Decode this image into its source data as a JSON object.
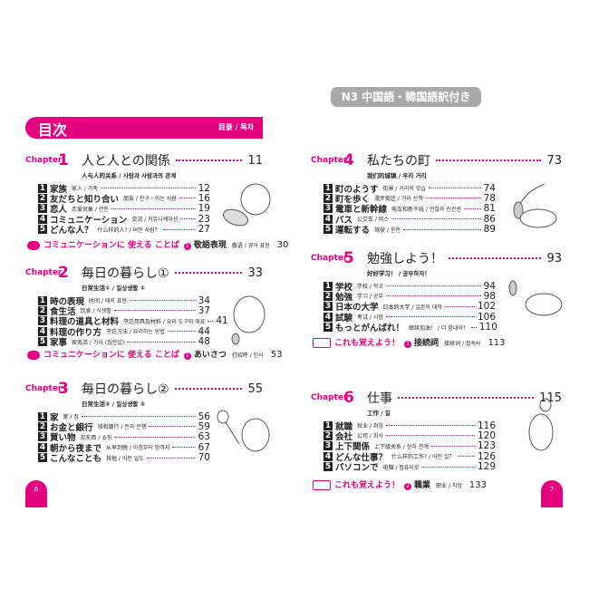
{
  "banner": "N3 中国語・韓国語訳付き",
  "header": {
    "title": "目次",
    "subtitle": "目录 / 목차"
  },
  "colors": {
    "accent": "#e4007f",
    "banner": "#a9a9a9"
  },
  "conv_label": "コミュニケーションに 使える ことば",
  "extra_label": "これも覚えよう！",
  "chapters": [
    {
      "label": "Chapter",
      "num": "1",
      "title": "人と人との関係",
      "page": "11",
      "subtitle": "人与人的关系 / 사람과 사람과의 관계",
      "items": [
        [
          "家族",
          "家人 / 가족",
          "12"
        ],
        [
          "友だちと知り合い",
          "朋友 / 친구・아는 사람",
          "16"
        ],
        [
          "恋人",
          "恋爱对象 / 연인",
          "19"
        ],
        [
          "コミュニケーション",
          "交流 / 커뮤니케이션",
          "23"
        ],
        [
          "どんな人？",
          "什么样的人? / 어떤 사람？",
          "27"
        ]
      ],
      "extra": {
        "n": "1",
        "word": "敬語表現",
        "tr": "敬语 / 경어 표현",
        "page": "30"
      }
    },
    {
      "label": "Chapter",
      "num": "2",
      "title": "毎日の暮らし①",
      "page": "33",
      "subtitle": "日常生活① / 일상생활 ①",
      "items": [
        [
          "時の表現",
          "时间 / 때의 표현",
          "34"
        ],
        [
          "食生活",
          "饮食 / 식생활",
          "37"
        ],
        [
          "料理の道具と材料",
          "烹饪用具及材料 / 요리 도구와 재료",
          "41"
        ],
        [
          "料理の作り方",
          "烹饪方法 / 요리하는 방법",
          "44"
        ],
        [
          "家事",
          "家务活 / 가사 (집안일)",
          "48"
        ]
      ],
      "extra": {
        "n": "2",
        "word": "あいさつ",
        "tr": "打招呼 / 인사",
        "page": "53"
      }
    },
    {
      "label": "Chapter",
      "num": "3",
      "title": "毎日の暮らし②",
      "page": "55",
      "subtitle": "日常生活② / 일상생활 ②",
      "items": [
        [
          "家",
          "家 / 집",
          "56"
        ],
        [
          "お金と銀行",
          "钱和银行 / 돈과 은행",
          "59"
        ],
        [
          "買い物",
          "买东西 / 쇼핑",
          "63"
        ],
        [
          "朝から夜まで",
          "从早到晚 / 아침부터 밤까지",
          "67"
        ],
        [
          "こんなことも",
          "其他 / 이런 일도",
          "70"
        ]
      ]
    },
    {
      "label": "Chapter",
      "num": "4",
      "title": "私たちの町",
      "page": "73",
      "subtitle": "我们的城镇 / 우리 거리",
      "items": [
        [
          "町のようす",
          "街景 / 거리의 모습",
          "74"
        ],
        [
          "町を歩く",
          "漫步街区 / 거리 산책",
          "78"
        ],
        [
          "電車と新幹線",
          "电车和新干线 / 전철과 신칸센",
          "81"
        ],
        [
          "バス",
          "公交车 / 버스",
          "86"
        ],
        [
          "運転する",
          "驾驶 / 운전",
          "89"
        ]
      ]
    },
    {
      "label": "Chapter",
      "num": "5",
      "title": "勉強しよう！",
      "page": "93",
      "subtitle": "好好学习！ / 공부하자！",
      "items": [
        [
          "学校",
          "学校 / 학교",
          "94"
        ],
        [
          "勉強",
          "学习 / 공부",
          "98"
        ],
        [
          "日本の大学",
          "日本的大学 / 일본의 대학",
          "102"
        ],
        [
          "試験",
          "考试 / 시험",
          "106"
        ],
        [
          "もっとがんばれ！",
          "继续加油！ / 더 힘내라！",
          "110"
        ]
      ],
      "extra": {
        "n": "1",
        "word": "接続詞",
        "tr": "接续词 / 접속사",
        "page": "113"
      }
    },
    {
      "label": "Chapter",
      "num": "6",
      "title": "仕事",
      "page": "115",
      "subtitle": "工作 / 일",
      "items": [
        [
          "就職",
          "就业 / 취업",
          "116"
        ],
        [
          "会社",
          "公司 / 회사",
          "120"
        ],
        [
          "上下関係",
          "上下级关系 / 상하 관계",
          "123"
        ],
        [
          "どんな仕事？",
          "什么样的工作? / 어떤 일？",
          "126"
        ],
        [
          "パソコンで",
          "电脑 / 컴퓨터로",
          "129"
        ]
      ],
      "extra": {
        "n": "2",
        "word": "職業",
        "tr": "职业 / 직업",
        "page": "133"
      }
    }
  ],
  "page_numbers": {
    "left": "6",
    "right": "7"
  }
}
